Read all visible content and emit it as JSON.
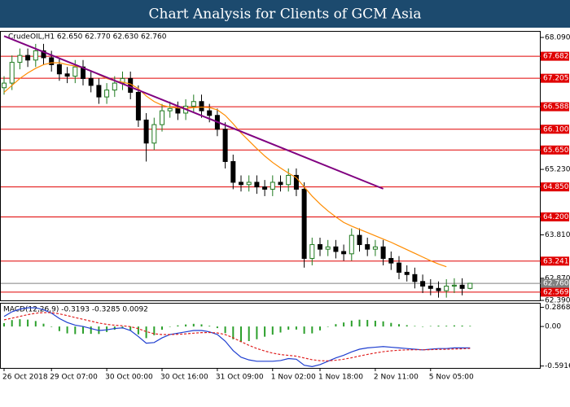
{
  "header": {
    "title": "Chart Analysis for Clients of GCM Asia"
  },
  "chart_data": [
    {
      "type": "candlestick",
      "info": "CrudeOIL,H1 62.650 62.770 62.630 62.760",
      "categories": [
        "26 Oct 2018",
        null,
        null,
        null,
        null,
        null,
        "29 Oct 07:00",
        null,
        null,
        null,
        null,
        null,
        null,
        "30 Oct 00:00",
        null,
        null,
        null,
        null,
        null,
        null,
        "30 Oct 16:00",
        null,
        null,
        null,
        null,
        null,
        null,
        "31 Oct 09:00",
        null,
        null,
        null,
        null,
        null,
        null,
        "1 Nov 02:00",
        null,
        null,
        null,
        null,
        null,
        "1 Nov 18:00",
        null,
        null,
        null,
        null,
        null,
        null,
        "2 Nov 11:00",
        null,
        null,
        null,
        null,
        null,
        null,
        "5 Nov 05:00",
        null,
        null,
        null,
        null,
        null
      ],
      "open": [
        67.0,
        67.1,
        67.55,
        67.7,
        67.6,
        67.8,
        67.65,
        67.5,
        67.3,
        67.25,
        67.45,
        67.2,
        67.05,
        66.8,
        66.95,
        67.1,
        67.2,
        66.9,
        66.3,
        65.8,
        66.2,
        66.5,
        66.55,
        66.45,
        66.6,
        66.7,
        66.5,
        66.4,
        66.1,
        65.4,
        64.95,
        64.9,
        64.95,
        64.85,
        64.8,
        64.95,
        64.9,
        65.1,
        64.8,
        63.3,
        63.6,
        63.5,
        63.55,
        63.45,
        63.4,
        63.8,
        63.6,
        63.5,
        63.55,
        63.3,
        63.2,
        63.0,
        62.95,
        62.8,
        62.7,
        62.65,
        62.6,
        62.7,
        62.72,
        62.65
      ],
      "high": [
        67.25,
        67.7,
        67.85,
        67.85,
        67.95,
        67.95,
        67.8,
        67.65,
        67.45,
        67.6,
        67.6,
        67.35,
        67.2,
        67.1,
        67.25,
        67.35,
        67.35,
        67.05,
        66.45,
        66.35,
        66.65,
        66.7,
        66.7,
        66.75,
        66.85,
        66.85,
        66.65,
        66.55,
        66.25,
        65.55,
        65.1,
        65.1,
        65.1,
        65.0,
        65.1,
        65.1,
        65.25,
        65.25,
        64.95,
        63.75,
        63.75,
        63.7,
        63.7,
        63.6,
        63.95,
        63.95,
        63.75,
        63.7,
        63.7,
        63.45,
        63.35,
        63.15,
        63.1,
        62.95,
        62.85,
        62.8,
        62.85,
        62.87,
        62.87,
        62.77
      ],
      "low": [
        66.85,
        66.95,
        67.4,
        67.45,
        67.45,
        67.5,
        67.35,
        67.15,
        67.1,
        67.1,
        67.05,
        66.9,
        66.65,
        66.65,
        66.8,
        66.95,
        66.75,
        66.15,
        65.4,
        65.65,
        66.05,
        66.35,
        66.3,
        66.3,
        66.45,
        66.35,
        66.25,
        65.95,
        65.25,
        64.8,
        64.75,
        64.75,
        64.7,
        64.65,
        64.65,
        64.75,
        64.75,
        64.65,
        63.1,
        63.15,
        63.35,
        63.35,
        63.3,
        63.25,
        63.25,
        63.45,
        63.35,
        63.35,
        63.15,
        63.05,
        62.85,
        62.8,
        62.65,
        62.55,
        62.5,
        62.45,
        62.45,
        62.55,
        62.5,
        62.63
      ],
      "close": [
        67.1,
        67.55,
        67.7,
        67.6,
        67.8,
        67.65,
        67.5,
        67.3,
        67.25,
        67.45,
        67.2,
        67.05,
        66.8,
        66.95,
        67.1,
        67.2,
        66.9,
        66.3,
        65.8,
        66.2,
        66.5,
        66.55,
        66.45,
        66.6,
        66.7,
        66.5,
        66.4,
        66.1,
        65.4,
        64.95,
        64.9,
        64.95,
        64.85,
        64.8,
        64.95,
        64.9,
        65.1,
        64.8,
        63.3,
        63.6,
        63.5,
        63.55,
        63.45,
        63.4,
        63.8,
        63.6,
        63.5,
        63.55,
        63.3,
        63.2,
        63.0,
        62.95,
        62.8,
        62.7,
        62.65,
        62.6,
        62.7,
        62.72,
        62.65,
        62.76
      ],
      "up_color": "#1f7a1f",
      "down_color": "#000000",
      "ylim": [
        62.373,
        68.231
      ],
      "yticks": [
        {
          "value": 68.09,
          "label": "68.090"
        },
        {
          "value": 65.23,
          "label": "65.230"
        },
        {
          "value": 63.81,
          "label": "63.810"
        },
        {
          "value": 62.87,
          "label": "62.870"
        },
        {
          "value": 62.39,
          "label": "62.390"
        }
      ],
      "moving_average": {
        "color": "#ff8c00",
        "values": [
          66.9,
          67.05,
          67.2,
          67.32,
          67.42,
          67.5,
          67.54,
          67.54,
          67.5,
          67.47,
          67.43,
          67.37,
          67.28,
          67.2,
          67.15,
          67.12,
          67.08,
          66.98,
          66.82,
          66.7,
          66.62,
          66.58,
          66.56,
          66.55,
          66.57,
          66.58,
          66.57,
          66.52,
          66.4,
          66.22,
          66.02,
          65.85,
          65.68,
          65.52,
          65.38,
          65.26,
          65.15,
          65.05,
          64.85,
          64.65,
          64.48,
          64.33,
          64.2,
          64.08,
          64.0,
          63.93,
          63.86,
          63.79,
          63.72,
          63.65,
          63.57,
          63.49,
          63.41,
          63.33,
          63.25,
          63.18,
          63.12,
          null,
          null,
          null
        ]
      },
      "trendline": {
        "color": "#800080",
        "x": [
          0,
          48
        ],
        "values": [
          68.12,
          64.81
        ]
      },
      "levels": {
        "color": "#e00000",
        "values": [
          67.682,
          67.205,
          66.588,
          {
            "value": 66.1,
            "label": "66.100"
          },
          {
            "value": 65.65,
            "label": "65.650"
          },
          {
            "value": 64.85,
            "label": "64.850"
          },
          {
            "value": 64.2,
            "label": "64.200"
          },
          63.241,
          62.569
        ]
      },
      "current_price": {
        "color": "#808080",
        "value": {
          "value": 62.76,
          "label": "62.760"
        }
      }
    },
    {
      "type": "macd",
      "label": "MACD(12,26,9) -0.3193 -0.3285 0.0092",
      "ylim": [
        -0.62,
        0.33
      ],
      "yticks": [
        0.2868,
        {
          "value": 0,
          "label": "0.00"
        },
        -0.5916
      ],
      "histogram": {
        "color": "#2ca02c",
        "values": [
          0.05,
          0.096,
          0.109,
          0.103,
          0.082,
          0.042,
          -0.007,
          -0.069,
          -0.103,
          -0.114,
          -0.107,
          -0.11,
          -0.112,
          -0.082,
          -0.049,
          -0.031,
          -0.057,
          -0.118,
          -0.174,
          -0.131,
          -0.049,
          0.001,
          0.017,
          0.03,
          0.04,
          0.032,
          0.01,
          -0.024,
          -0.099,
          -0.191,
          -0.233,
          -0.218,
          -0.191,
          -0.153,
          -0.122,
          -0.09,
          -0.048,
          -0.046,
          -0.109,
          -0.103,
          -0.058,
          -0.006,
          0.035,
          0.06,
          0.088,
          0.102,
          0.098,
          0.086,
          0.077,
          0.054,
          0.035,
          0.02,
          0.008,
          -0.002,
          0.007,
          0.013,
          0.011,
          0.017,
          0.014,
          0.0092
        ]
      },
      "macd": {
        "color": "#1f3fd0",
        "values": [
          0.15,
          0.22,
          0.26,
          0.28,
          0.28,
          0.25,
          0.2,
          0.12,
          0.06,
          0.02,
          0.0,
          -0.03,
          -0.06,
          -0.05,
          -0.03,
          -0.02,
          -0.06,
          -0.15,
          -0.25,
          -0.24,
          -0.17,
          -0.12,
          -0.1,
          -0.08,
          -0.06,
          -0.06,
          -0.08,
          -0.12,
          -0.22,
          -0.36,
          -0.46,
          -0.5,
          -0.52,
          -0.52,
          -0.52,
          -0.51,
          -0.48,
          -0.49,
          -0.58,
          -0.6,
          -0.57,
          -0.52,
          -0.47,
          -0.43,
          -0.38,
          -0.34,
          -0.32,
          -0.31,
          -0.3,
          -0.31,
          -0.32,
          -0.33,
          -0.34,
          -0.35,
          -0.34,
          -0.33,
          -0.33,
          -0.32,
          -0.32,
          -0.3193
        ]
      },
      "signal": {
        "color": "#e02020",
        "values": [
          0.1,
          0.124,
          0.151,
          0.177,
          0.198,
          0.208,
          0.207,
          0.189,
          0.163,
          0.134,
          0.107,
          0.08,
          0.052,
          0.032,
          0.019,
          0.011,
          -0.003,
          -0.032,
          -0.076,
          -0.109,
          -0.121,
          -0.121,
          -0.117,
          -0.11,
          -0.1,
          -0.092,
          -0.09,
          -0.096,
          -0.121,
          -0.169,
          -0.227,
          -0.282,
          -0.329,
          -0.367,
          -0.398,
          -0.42,
          -0.432,
          -0.444,
          -0.471,
          -0.497,
          -0.512,
          -0.514,
          -0.505,
          -0.49,
          -0.468,
          -0.442,
          -0.418,
          -0.396,
          -0.377,
          -0.364,
          -0.355,
          -0.35,
          -0.348,
          -0.348,
          -0.347,
          -0.343,
          -0.341,
          -0.337,
          -0.334,
          -0.3285
        ]
      }
    }
  ]
}
